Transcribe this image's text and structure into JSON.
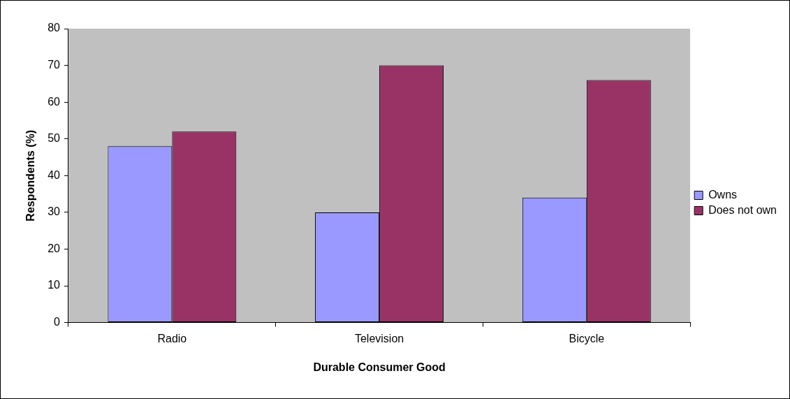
{
  "chart_data": {
    "type": "bar",
    "xlabel": "Durable Consumer Good",
    "ylabel": "Respondents (%)",
    "categories": [
      "Radio",
      "Television",
      "Bicycle"
    ],
    "series": [
      {
        "name": "Owns",
        "color": "#9999ff",
        "values": [
          48,
          30,
          34
        ]
      },
      {
        "name": "Does not own",
        "color": "#993366",
        "values": [
          52,
          70,
          66
        ]
      }
    ],
    "ylim": [
      0,
      80
    ],
    "yticks": [
      0,
      10,
      20,
      30,
      40,
      50,
      60,
      70,
      80
    ],
    "grid": false,
    "legend": "right"
  }
}
